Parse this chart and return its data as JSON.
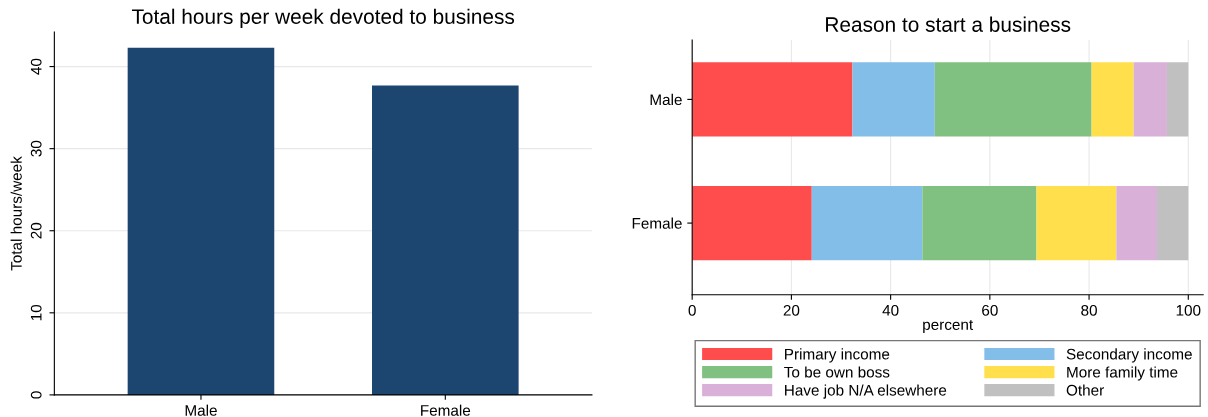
{
  "chart_data": [
    {
      "type": "bar",
      "title": "Total hours per week devoted to business",
      "ylabel": "Total hours/week",
      "categories": [
        "Male",
        "Female"
      ],
      "values": [
        42.3,
        37.7
      ],
      "color": "#1c4670",
      "ylim": [
        0,
        44.2
      ],
      "yticks": [
        0,
        10,
        20,
        30,
        40
      ],
      "grid": "y",
      "legend": false
    },
    {
      "type": "bar",
      "title": "Reason to start a business",
      "xlabel": "percent",
      "orientation": "horizontal",
      "stacked": true,
      "categories": [
        "Male",
        "Female"
      ],
      "xlim": [
        0,
        103
      ],
      "xticks": [
        0,
        20,
        40,
        60,
        80,
        100
      ],
      "grid": "x",
      "legend": "bottom",
      "series": [
        {
          "name": "Primary income",
          "color": "#ff4c4c",
          "values": [
            32.3,
            24.1
          ]
        },
        {
          "name": "Secondary income",
          "color": "#83bee8",
          "values": [
            16.6,
            22.3
          ]
        },
        {
          "name": "To be own boss",
          "color": "#80c080",
          "values": [
            31.6,
            23.0
          ]
        },
        {
          "name": "More family time",
          "color": "#ffdf4c",
          "values": [
            8.5,
            16.1
          ]
        },
        {
          "name": "Have job N/A elsewhere",
          "color": "#d8b0d8",
          "values": [
            6.7,
            8.2
          ]
        },
        {
          "name": "Other",
          "color": "#c0c0c0",
          "values": [
            4.3,
            6.3
          ]
        }
      ]
    }
  ]
}
